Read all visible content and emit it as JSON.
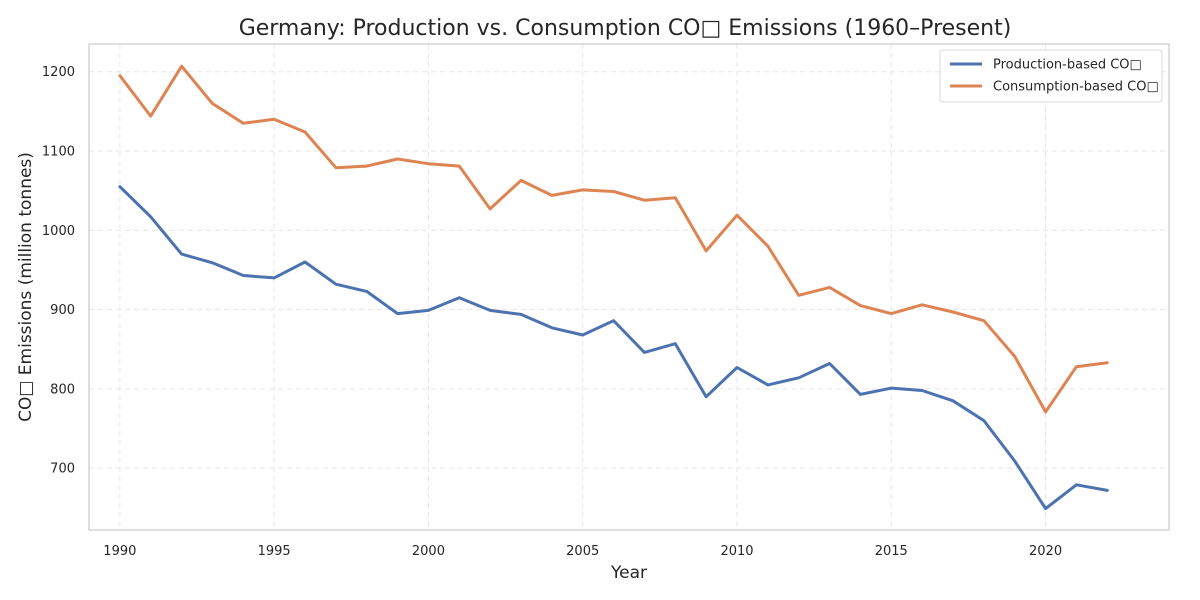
{
  "chart_data": {
    "type": "line",
    "title": "Germany: Production vs. Consumption CO□ Emissions (1960–Present)",
    "xlabel": "Year",
    "ylabel": "CO□ Emissions (million tonnes)",
    "xlim": [
      1989,
      2024
    ],
    "ylim": [
      622,
      1235
    ],
    "xticks": [
      1990,
      1995,
      2000,
      2005,
      2010,
      2015,
      2020
    ],
    "yticks": [
      700,
      800,
      900,
      1000,
      1100,
      1200
    ],
    "grid": true,
    "legend_position": "top-right",
    "x": [
      1990,
      1991,
      1992,
      1993,
      1994,
      1995,
      1996,
      1997,
      1998,
      1999,
      2000,
      2001,
      2002,
      2003,
      2004,
      2005,
      2006,
      2007,
      2008,
      2009,
      2010,
      2011,
      2012,
      2013,
      2014,
      2015,
      2016,
      2017,
      2018,
      2019,
      2020,
      2021,
      2022
    ],
    "series": [
      {
        "name": "Production-based CO□",
        "color": "#4c72b0",
        "values": [
          1055,
          1017,
          970,
          959,
          943,
          940,
          960,
          932,
          923,
          895,
          899,
          915,
          899,
          894,
          877,
          868,
          886,
          846,
          857,
          790,
          827,
          805,
          814,
          832,
          793,
          801,
          798,
          785,
          760,
          709,
          649,
          679,
          672
        ]
      },
      {
        "name": "Consumption-based CO□",
        "color": "#dd8452",
        "values": [
          1195,
          1144,
          1207,
          1160,
          1135,
          1140,
          1124,
          1079,
          1081,
          1090,
          1084,
          1081,
          1027,
          1063,
          1044,
          1051,
          1049,
          1038,
          1041,
          974,
          1019,
          980,
          918,
          928,
          905,
          895,
          906,
          897,
          886,
          841,
          771,
          828,
          833
        ]
      }
    ]
  }
}
